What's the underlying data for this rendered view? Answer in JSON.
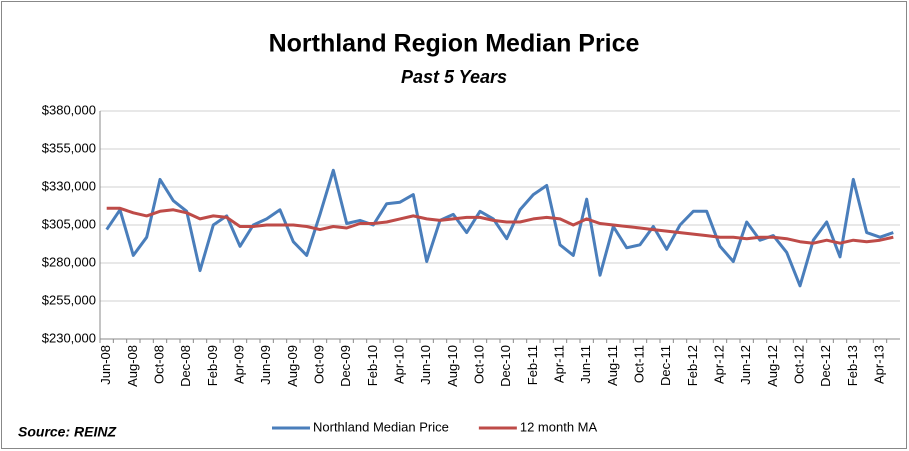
{
  "chart_data": {
    "type": "line",
    "title": "Northland Region Median Price",
    "subtitle": "Past 5 Years",
    "source": "Source: REINZ",
    "legend": "bottom",
    "grid": true,
    "categories": [
      "Jun-08",
      null,
      "Aug-08",
      null,
      "Oct-08",
      null,
      "Dec-08",
      null,
      "Feb-09",
      null,
      "Apr-09",
      null,
      "Jun-09",
      null,
      "Aug-09",
      null,
      "Oct-09",
      null,
      "Dec-09",
      null,
      "Feb-10",
      null,
      "Apr-10",
      null,
      "Jun-10",
      null,
      "Aug-10",
      null,
      "Oct-10",
      null,
      "Dec-10",
      null,
      "Feb-11",
      null,
      "Apr-11",
      null,
      "Jun-11",
      null,
      "Aug-11",
      null,
      "Oct-11",
      null,
      "Dec-11",
      null,
      "Feb-12",
      null,
      "Apr-12",
      null,
      "Jun-12",
      null,
      "Aug-12",
      null,
      "Oct-12",
      null,
      "Dec-12",
      null,
      "Feb-13",
      null,
      "Apr-13",
      null
    ],
    "series": [
      {
        "name": "Northland Median Price",
        "color": "#4a7ebb",
        "values": [
          302000,
          315000,
          285000,
          297000,
          335000,
          321000,
          314000,
          275000,
          305000,
          311000,
          291000,
          305000,
          309000,
          315000,
          294000,
          285000,
          312000,
          341000,
          306000,
          308000,
          305000,
          319000,
          320000,
          325000,
          281000,
          308000,
          312000,
          300000,
          314000,
          309000,
          296000,
          315000,
          325000,
          331000,
          292000,
          285000,
          322000,
          272000,
          304000,
          290000,
          292000,
          304000,
          289000,
          305000,
          314000,
          314000,
          291000,
          281000,
          307000,
          295000,
          298000,
          287000,
          265000,
          295000,
          307000,
          284000,
          335000,
          300000,
          297000,
          300000
        ]
      },
      {
        "name": "12 month MA",
        "color": "#be4b48",
        "values": [
          316000,
          316000,
          313000,
          311000,
          314000,
          315000,
          313000,
          309000,
          311000,
          310000,
          304000,
          304000,
          305000,
          305000,
          305000,
          304000,
          302000,
          304000,
          303000,
          306000,
          306000,
          307000,
          309000,
          311000,
          309000,
          308000,
          309000,
          310000,
          310000,
          308000,
          307000,
          307000,
          309000,
          310000,
          309000,
          305000,
          309000,
          306000,
          305000,
          304000,
          303000,
          302000,
          301000,
          300000,
          299000,
          298000,
          297000,
          297000,
          296000,
          297000,
          297000,
          296000,
          294000,
          293000,
          295000,
          293000,
          295000,
          294000,
          295000,
          297000
        ]
      }
    ],
    "ylim": [
      230000,
      380000
    ],
    "yticks": [
      {
        "value": 230000,
        "label": "$230,000"
      },
      {
        "value": 255000,
        "label": "$255,000"
      },
      {
        "value": 280000,
        "label": "$280,000"
      },
      {
        "value": 305000,
        "label": "$305,000"
      },
      {
        "value": 330000,
        "label": "$330,000"
      },
      {
        "value": 355000,
        "label": "$355,000"
      },
      {
        "value": 380000,
        "label": "$380,000"
      }
    ]
  }
}
